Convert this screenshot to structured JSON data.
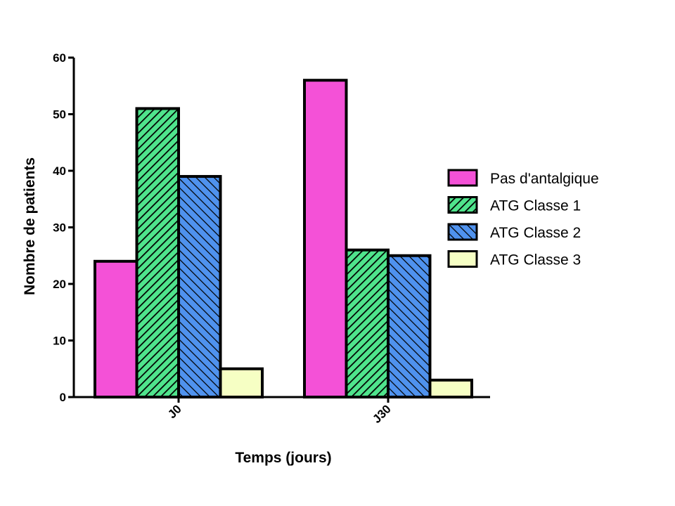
{
  "chart_data": {
    "type": "bar",
    "title": "",
    "xlabel": "Temps (jours)",
    "ylabel": "Nombre de patients",
    "categories": [
      "J0",
      "J30"
    ],
    "ylim": [
      0,
      60
    ],
    "yticks": [
      0,
      10,
      20,
      30,
      40,
      50,
      60
    ],
    "grid": false,
    "legend_position": "right",
    "series": [
      {
        "name": "Pas d'antalgique",
        "values": [
          24,
          56
        ],
        "color": "#f451d7",
        "pattern": "solid"
      },
      {
        "name": "ATG Classe 1",
        "values": [
          51,
          26
        ],
        "color": "#4fe48c",
        "pattern": "diagonal-forward"
      },
      {
        "name": "ATG Classe 2",
        "values": [
          39,
          25
        ],
        "color": "#4f92ee",
        "pattern": "diagonal-backward"
      },
      {
        "name": "ATG Classe 3",
        "values": [
          5,
          3
        ],
        "color": "#f6ffc4",
        "pattern": "solid"
      }
    ]
  }
}
